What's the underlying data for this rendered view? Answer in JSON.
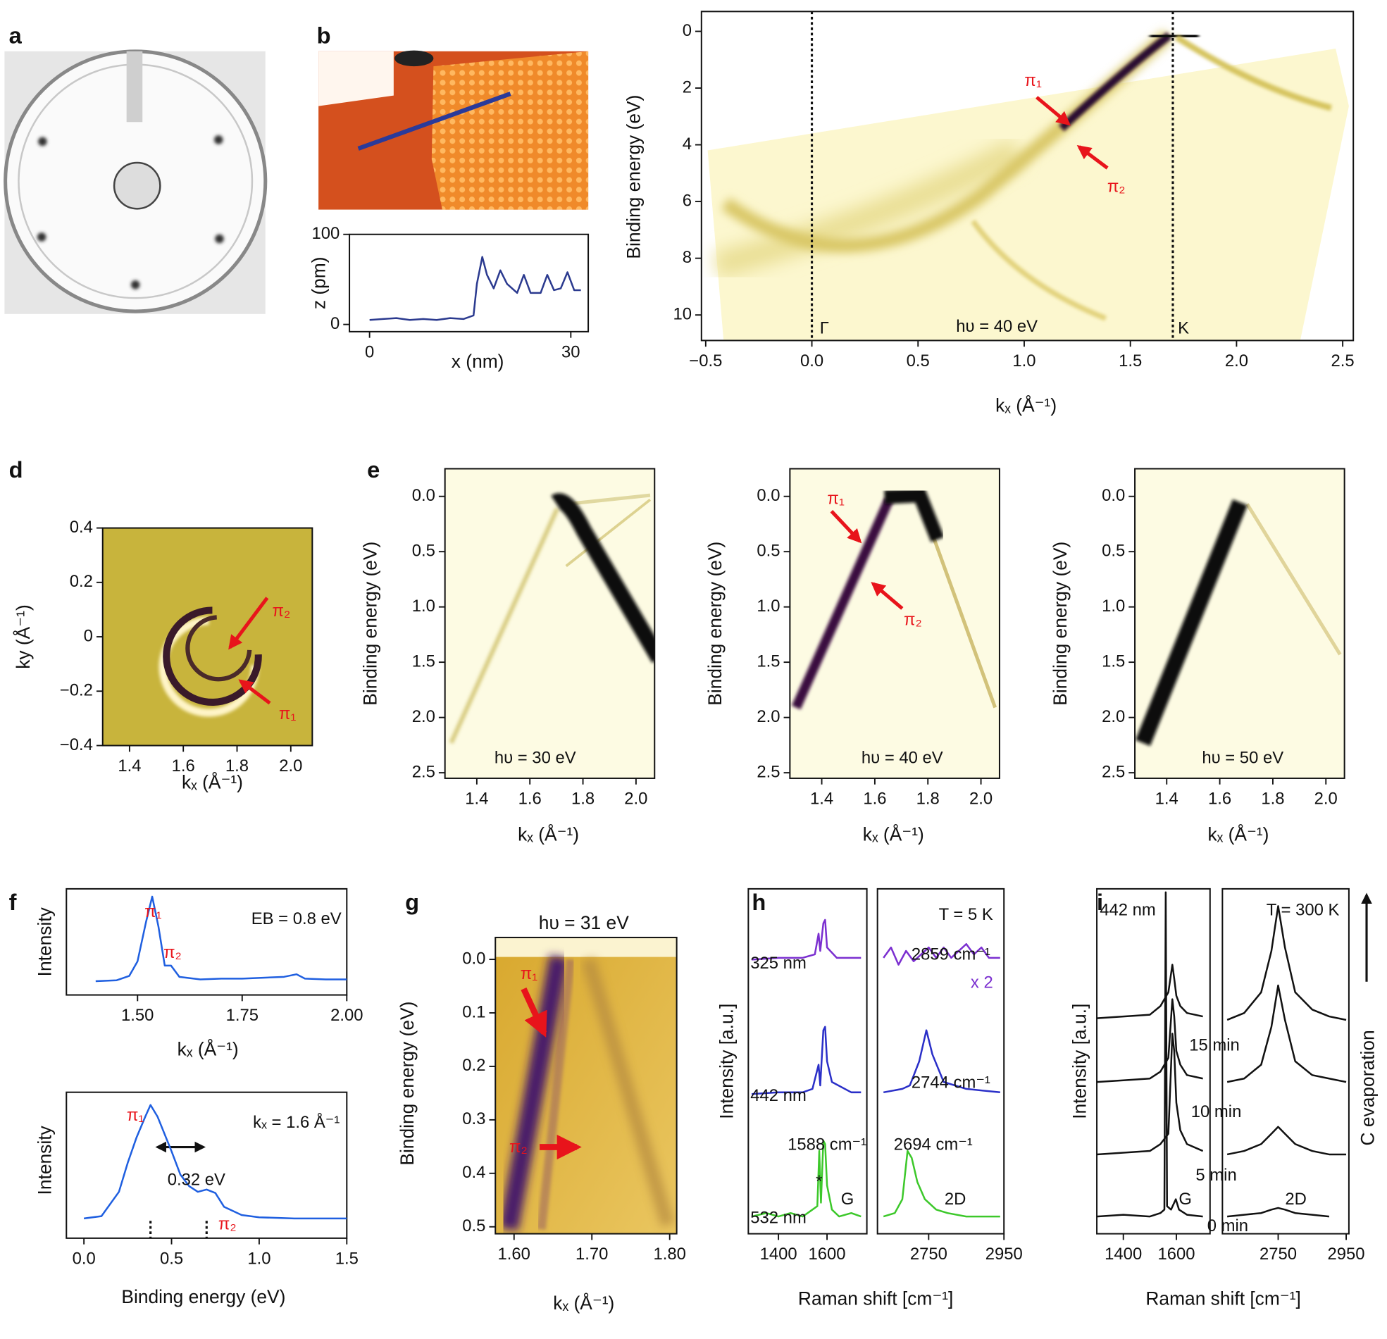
{
  "chart_data": [
    {
      "type": "image",
      "label": "a"
    },
    {
      "type": "image",
      "label": "b"
    },
    {
      "type": "line",
      "xlabel": "x (nm)",
      "ylabel": "z (pm)",
      "xlim": [
        -3,
        32.6
      ],
      "xticks": [
        0,
        30
      ],
      "ylim": [
        -8,
        100
      ],
      "yticks": [
        0,
        100
      ],
      "color": "#2b3a8f",
      "x": [
        0,
        2,
        4,
        6,
        8,
        10,
        12,
        14,
        15.5,
        16,
        16.8,
        17.5,
        18.5,
        19.5,
        20.5,
        22,
        23,
        24,
        25.5,
        26.5,
        27.5,
        28.5,
        29.5,
        30.5,
        31.5
      ],
      "values": [
        5,
        6,
        7,
        5,
        6,
        5,
        7,
        6,
        10,
        45,
        75,
        55,
        40,
        60,
        45,
        35,
        55,
        35,
        35,
        55,
        38,
        40,
        58,
        38,
        38
      ]
    },
    {
      "type": "image",
      "xlabel": "kₓ (Å⁻¹)",
      "ylabel": "Binding energy (eV)",
      "xlim": [
        -0.52,
        2.55
      ],
      "xticks": [
        {
          "value": -0.5,
          "label": "−0.5"
        },
        {
          "value": 0,
          "label": "0.0"
        },
        0.5,
        {
          "value": 1,
          "label": "1.0"
        },
        1.5,
        {
          "value": 2,
          "label": "2.0"
        },
        2.5
      ],
      "ylim": [
        10.9,
        -0.7
      ],
      "yticks": [
        0,
        2,
        4,
        6,
        8,
        10
      ],
      "vlines": [
        0,
        1.7
      ],
      "annotations": [
        {
          "text": "π₁",
          "color": "#e8141b"
        },
        {
          "text": "π₂",
          "color": "#e8141b"
        },
        "Γ",
        "K",
        "hυ = 40 eV"
      ]
    },
    {
      "type": "image",
      "label": "d",
      "xlabel": "kₓ (Å⁻¹)",
      "ylabel": "ky (Å⁻¹)",
      "xlim": [
        1.3,
        2.08
      ],
      "xticks": [
        1.4,
        1.6,
        1.8,
        {
          "value": 2,
          "label": "2.0"
        }
      ],
      "ylim": [
        -0.4,
        0.4
      ],
      "yticks": [
        {
          "value": -0.4,
          "label": "−0.4"
        },
        {
          "value": -0.2,
          "label": "−0.2"
        },
        0,
        0.2,
        0.4
      ],
      "annotations": [
        {
          "text": "π₂",
          "color": "#e8141b"
        },
        {
          "text": "π₁",
          "color": "#e8141b"
        }
      ]
    },
    {
      "type": "image",
      "label": "e",
      "xlabel": "kₓ (Å⁻¹)",
      "ylabel": "Binding energy (eV)",
      "xlim": [
        1.28,
        2.07
      ],
      "xticks": [
        1.4,
        1.6,
        1.8,
        {
          "value": 2,
          "label": "2.0"
        }
      ],
      "ylim": [
        2.55,
        -0.25
      ],
      "yticks": [
        {
          "value": 0,
          "label": "0.0"
        },
        0.5,
        {
          "value": 1,
          "label": "1.0"
        },
        1.5,
        {
          "value": 2,
          "label": "2.0"
        },
        2.5
      ],
      "annotations": [
        "hυ = 30 eV"
      ]
    },
    {
      "type": "image",
      "xlabel": "kₓ (Å⁻¹)",
      "ylabel": "Binding energy (eV)",
      "xlim": [
        1.28,
        2.07
      ],
      "xticks": [
        1.4,
        1.6,
        1.8,
        {
          "value": 2,
          "label": "2.0"
        }
      ],
      "ylim": [
        2.55,
        -0.25
      ],
      "yticks": [
        {
          "value": 0,
          "label": "0.0"
        },
        0.5,
        {
          "value": 1,
          "label": "1.0"
        },
        1.5,
        {
          "value": 2,
          "label": "2.0"
        },
        2.5
      ],
      "annotations": [
        {
          "text": "π₁",
          "color": "#e8141b"
        },
        {
          "text": "π₂",
          "color": "#e8141b"
        },
        "hυ = 40 eV"
      ]
    },
    {
      "type": "image",
      "xlabel": "kₓ (Å⁻¹)",
      "ylabel": "Binding energy (eV)",
      "xlim": [
        1.28,
        2.07
      ],
      "xticks": [
        1.4,
        1.6,
        1.8,
        {
          "value": 2,
          "label": "2.0"
        }
      ],
      "ylim": [
        2.55,
        -0.25
      ],
      "yticks": [
        {
          "value": 0,
          "label": "0.0"
        },
        0.5,
        {
          "value": 1,
          "label": "1.0"
        },
        1.5,
        {
          "value": 2,
          "label": "2.0"
        },
        2.5
      ],
      "annotations": [
        "hυ = 50 eV"
      ]
    },
    {
      "type": "line",
      "label": "f",
      "xlabel": "kₓ (Å⁻¹)",
      "ylabel": "Intensity",
      "xlim": [
        1.33,
        2.0
      ],
      "xticks": [
        {
          "value": 1.5,
          "label": "1.50"
        },
        1.75,
        {
          "value": 2,
          "label": "2.00"
        }
      ],
      "ylim": [
        -0.14,
        1.09
      ],
      "color": "#1f5fe0",
      "x": [
        1.4,
        1.45,
        1.48,
        1.5,
        1.52,
        1.535,
        1.55,
        1.565,
        1.58,
        1.6,
        1.65,
        1.7,
        1.75,
        1.8,
        1.85,
        1.88,
        1.9,
        1.95,
        2.0
      ],
      "values": [
        0.02,
        0.03,
        0.08,
        0.25,
        0.7,
        1.0,
        0.65,
        0.2,
        0.2,
        0.07,
        0.04,
        0.05,
        0.05,
        0.06,
        0.07,
        0.1,
        0.05,
        0.04,
        0.04
      ],
      "annotations": [
        {
          "text": "π₁",
          "color": "#e8141b"
        },
        {
          "text": "π₂",
          "color": "#e8141b"
        },
        "EB = 0.8 eV"
      ]
    },
    {
      "type": "line",
      "xlabel": "Binding energy (eV)",
      "ylabel": "Intensity",
      "xlim": [
        -0.1,
        1.5
      ],
      "xticks": [
        {
          "value": 0,
          "label": "0.0"
        },
        0.5,
        {
          "value": 1,
          "label": "1.0"
        },
        1.5
      ],
      "ylim": [
        -0.15,
        1.11
      ],
      "color": "#1f5fe0",
      "vlines": [
        0.38,
        0.7
      ],
      "x": [
        0,
        0.1,
        0.2,
        0.25,
        0.3,
        0.35,
        0.38,
        0.42,
        0.5,
        0.55,
        0.6,
        0.65,
        0.7,
        0.75,
        0.8,
        0.9,
        1.0,
        1.2,
        1.5
      ],
      "values": [
        0.02,
        0.04,
        0.25,
        0.5,
        0.72,
        0.9,
        1.0,
        0.9,
        0.6,
        0.4,
        0.3,
        0.25,
        0.27,
        0.24,
        0.12,
        0.05,
        0.03,
        0.02,
        0.02
      ],
      "annotations": [
        {
          "text": "π₁",
          "color": "#e8141b"
        },
        {
          "text": "π₂",
          "color": "#e8141b"
        },
        "kₓ = 1.6 Å⁻¹",
        "0.32 eV"
      ]
    },
    {
      "type": "image",
      "label": "g",
      "title": "hυ = 31 eV",
      "xlabel": "kₓ (Å⁻¹)",
      "ylabel": "Binding energy (eV)",
      "xlim": [
        1.576,
        1.809
      ],
      "xticks": [
        {
          "value": 1.6,
          "label": "1.60"
        },
        {
          "value": 1.7,
          "label": "1.70"
        },
        {
          "value": 1.8,
          "label": "1.80"
        }
      ],
      "ylim": [
        0.513,
        -0.041
      ],
      "yticks": [
        {
          "value": 0,
          "label": "0.0"
        },
        0.1,
        0.2,
        0.3,
        0.4,
        0.5
      ],
      "annotations": [
        {
          "text": "π₁",
          "color": "#e8141b"
        },
        {
          "text": "π₂",
          "color": "#e8141b"
        }
      ]
    },
    {
      "type": "line",
      "label": "h",
      "xlabel": "Raman shift [cm⁻¹]",
      "ylabel": "Intensity [a.u.]",
      "ylim": [
        0,
        10
      ],
      "segments": [
        {
          "xlim": [
            1276,
            1764
          ],
          "xticks": [
            1400,
            1600
          ]
        },
        {
          "xlim": [
            2614,
            2950
          ],
          "xticks": [
            2750,
            2950
          ]
        }
      ],
      "series": [
        {
          "name": "325 nm",
          "color": "#7b2fd0",
          "segments": [
            {
              "x": [
                1290,
                1400,
                1500,
                1550,
                1565,
                1572,
                1585,
                1592,
                1600,
                1640,
                1740
              ],
              "values": [
                7.95,
                8.0,
                8.0,
                8.1,
                8.7,
                8.2,
                9.0,
                9.1,
                8.3,
                8.0,
                8.0
              ]
            },
            {
              "x": [
                2630,
                2650,
                2670,
                2690,
                2710,
                2730,
                2750,
                2770,
                2790,
                2810,
                2830,
                2850,
                2870,
                2890,
                2910,
                2940
              ],
              "values": [
                8.0,
                8.3,
                7.8,
                8.2,
                7.9,
                8.1,
                8.3,
                8.0,
                8.3,
                8.0,
                8.2,
                8.4,
                8.1,
                8.3,
                8.0,
                8.0
              ]
            }
          ]
        },
        {
          "name": "442 nm",
          "color": "#2a2fc8",
          "segments": [
            {
              "x": [
                1290,
                1400,
                1500,
                1540,
                1565,
                1572,
                1585,
                1592,
                1600,
                1620,
                1700,
                1740
              ],
              "values": [
                4.05,
                4.1,
                4.1,
                4.2,
                4.9,
                4.3,
                5.9,
                6.0,
                5.0,
                4.4,
                4.1,
                4.1
              ]
            },
            {
              "x": [
                2630,
                2680,
                2700,
                2725,
                2744,
                2760,
                2790,
                2850,
                2940
              ],
              "values": [
                4.1,
                4.2,
                4.3,
                5.0,
                5.9,
                5.2,
                4.4,
                4.2,
                4.1
              ]
            }
          ]
        },
        {
          "name": "532 nm",
          "color": "#3cc82a",
          "segments": [
            {
              "x": [
                1290,
                1350,
                1400,
                1450,
                1500,
                1540,
                1560,
                1568,
                1575,
                1585,
                1592,
                1600,
                1620,
                1650,
                1700,
                1740
              ],
              "values": [
                0.5,
                0.6,
                0.5,
                0.6,
                0.5,
                0.7,
                0.8,
                2.4,
                0.9,
                2.7,
                2.6,
                1.4,
                0.7,
                0.5,
                0.6,
                0.5
              ]
            },
            {
              "x": [
                2630,
                2660,
                2680,
                2694,
                2705,
                2720,
                2740,
                2770,
                2800,
                2850,
                2900,
                2940
              ],
              "values": [
                0.5,
                0.6,
                1.0,
                2.4,
                2.2,
                1.5,
                1.0,
                0.7,
                0.6,
                0.5,
                0.5,
                0.5
              ]
            }
          ]
        }
      ],
      "annotations": [
        "T = 5 K",
        "2859 cm⁻¹",
        {
          "text": "x 2",
          "color": "#7b2fd0"
        },
        "2744 cm⁻¹",
        "1588 cm⁻¹",
        "2694 cm⁻¹",
        "*",
        "G",
        "2D"
      ]
    },
    {
      "type": "line",
      "label": "i",
      "xlabel": "Raman shift [cm⁻¹]",
      "ylabel": "Intensity [a.u.]",
      "ylim": [
        0,
        10
      ],
      "segments": [
        {
          "xlim": [
            1300,
            1727
          ],
          "xticks": [
            1400,
            1600
          ]
        },
        {
          "xlim": [
            2586,
            2958
          ],
          "xticks": [
            2750,
            2950
          ]
        }
      ],
      "series": [
        {
          "name": "15 min",
          "color": "#111111",
          "segments": [
            {
              "x": [
                1300,
                1400,
                1500,
                1540,
                1570,
                1585,
                1592,
                1600,
                1615,
                1640,
                1700
              ],
              "values": [
                6.25,
                6.3,
                6.35,
                6.6,
                7.0,
                7.8,
                7.4,
                6.9,
                6.6,
                6.4,
                6.3
              ]
            },
            {
              "x": [
                2600,
                2650,
                2700,
                2730,
                2750,
                2770,
                2800,
                2850,
                2900,
                2950
              ],
              "values": [
                6.2,
                6.4,
                7.0,
                8.2,
                9.5,
                8.3,
                7.0,
                6.5,
                6.3,
                6.2
              ]
            }
          ]
        },
        {
          "name": "10 min",
          "color": "#111111",
          "segments": [
            {
              "x": [
                1300,
                1400,
                1500,
                1540,
                1570,
                1585,
                1592,
                1600,
                1615,
                1640,
                1700
              ],
              "values": [
                4.4,
                4.45,
                4.5,
                4.7,
                5.1,
                6.8,
                6.3,
                5.3,
                4.9,
                4.6,
                4.5
              ]
            },
            {
              "x": [
                2600,
                2650,
                2700,
                2730,
                2750,
                2770,
                2800,
                2850,
                2900,
                2950
              ],
              "values": [
                4.4,
                4.5,
                4.9,
                6.0,
                7.2,
                6.2,
                5.0,
                4.6,
                4.5,
                4.4
              ]
            }
          ]
        },
        {
          "name": "5 min",
          "color": "#111111",
          "segments": [
            {
              "x": [
                1300,
                1400,
                1500,
                1540,
                1570,
                1585,
                1592,
                1600,
                1615,
                1640,
                1700
              ],
              "values": [
                2.3,
                2.35,
                2.4,
                2.6,
                2.9,
                5.8,
                5.3,
                3.8,
                3.0,
                2.6,
                2.4
              ]
            },
            {
              "x": [
                2600,
                2650,
                2700,
                2730,
                2750,
                2770,
                2800,
                2850,
                2900,
                2950
              ],
              "values": [
                2.3,
                2.4,
                2.6,
                2.9,
                3.1,
                2.9,
                2.6,
                2.4,
                2.3,
                2.3
              ]
            }
          ]
        },
        {
          "name": "0 min",
          "color": "#111111",
          "segments": [
            {
              "x": [
                1300,
                1400,
                1500,
                1540,
                1555,
                1560,
                1565,
                1580,
                1598,
                1610,
                1640,
                1700
              ],
              "values": [
                0.5,
                0.55,
                0.5,
                0.6,
                0.7,
                9.9,
                0.8,
                0.7,
                1.0,
                0.7,
                0.55,
                0.5
              ]
            },
            {
              "x": [
                2600,
                2650,
                2700,
                2730,
                2750,
                2770,
                2800,
                2850,
                2900
              ],
              "values": [
                0.5,
                0.55,
                0.6,
                0.7,
                0.75,
                0.7,
                0.6,
                0.55,
                0.5
              ]
            }
          ]
        }
      ],
      "annotations": [
        "442 nm",
        "T = 300 K",
        "G",
        "2D",
        "C evaporation"
      ]
    }
  ]
}
